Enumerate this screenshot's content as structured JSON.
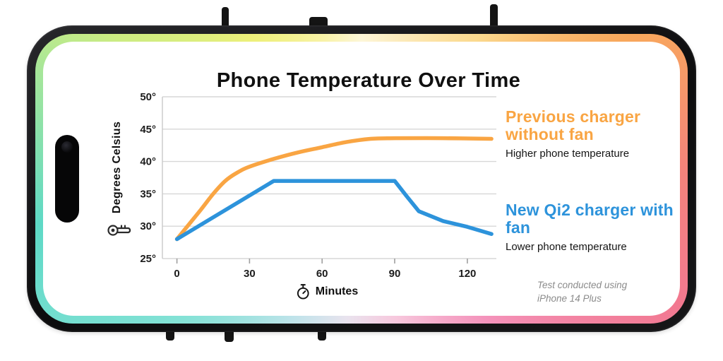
{
  "title": "Phone Temperature Over Time",
  "chart_data": {
    "type": "line",
    "title": "Phone Temperature Over Time",
    "xlabel": "Minutes",
    "ylabel": "Degrees Celsius",
    "xlim": [
      -6,
      132
    ],
    "ylim": [
      25,
      50
    ],
    "x_ticks": [
      0,
      30,
      60,
      90,
      120
    ],
    "y_ticks": [
      25,
      30,
      35,
      40,
      45,
      50
    ],
    "y_tick_suffix": "°",
    "grid": "horizontal",
    "legend_position": "right",
    "series": [
      {
        "name": "Previous charger without fan",
        "color": "#F9A543",
        "smooth": true,
        "x": [
          0,
          5,
          10,
          15,
          20,
          25,
          30,
          40,
          50,
          60,
          70,
          80,
          90,
          110,
          130
        ],
        "values": [
          28,
          30.3,
          32.6,
          35,
          37,
          38.3,
          39.2,
          40.4,
          41.4,
          42.2,
          43,
          43.5,
          43.6,
          43.6,
          43.5
        ]
      },
      {
        "name": "New Qi2 charger with fan",
        "color": "#2D93DB",
        "smooth": false,
        "x": [
          0,
          40,
          90,
          95,
          100,
          110,
          120,
          130
        ],
        "values": [
          28,
          37,
          37,
          34.6,
          32.3,
          30.8,
          29.9,
          28.8
        ]
      }
    ],
    "footnote": "Test conducted using iPhone 14 Plus"
  },
  "legend": {
    "previous": {
      "label": "Previous charger without fan",
      "sublabel": "Higher phone temperature",
      "color": "#F9A543"
    },
    "qi2": {
      "label": "New Qi2 charger with fan",
      "sublabel": "Lower phone temperature",
      "color": "#2D93DB"
    }
  },
  "footnote": {
    "line1": "Test conducted using",
    "line2": "iPhone 14 Plus"
  },
  "colors": {
    "orange": "#F9A543",
    "blue": "#2D93DB",
    "grid": "#d7d7d7",
    "text": "#101010"
  }
}
